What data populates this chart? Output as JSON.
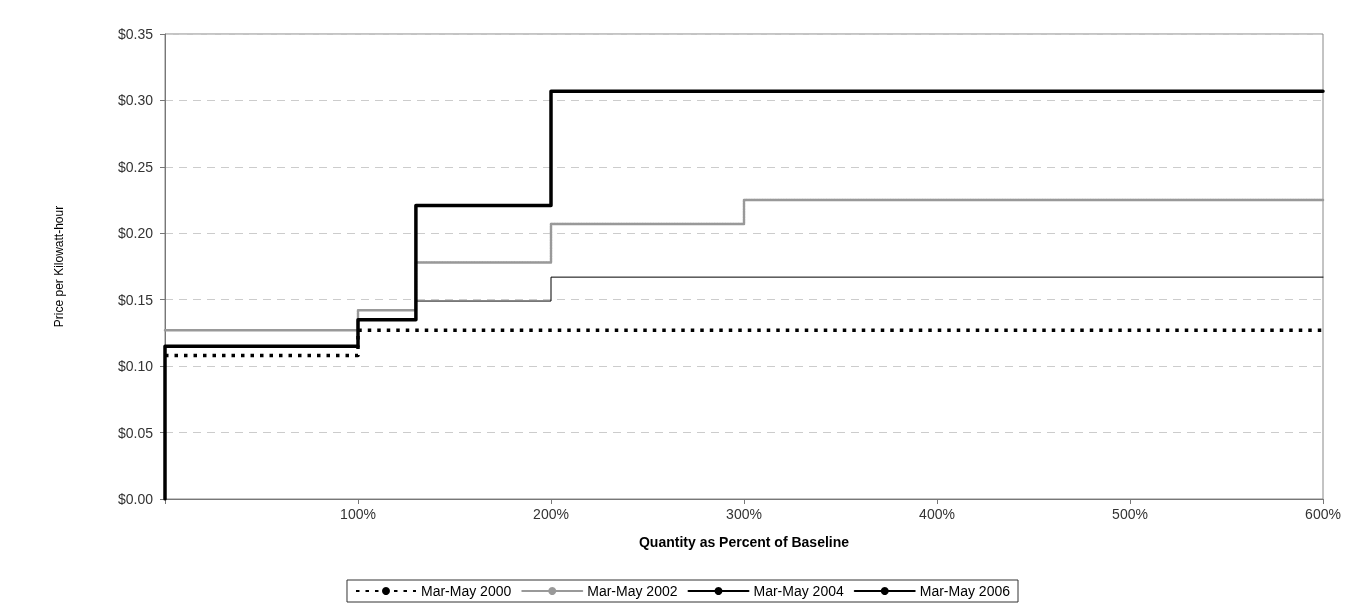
{
  "chart_data": {
    "type": "step",
    "xlabel": "Quantity as Percent of Baseline",
    "ylabel": "Price per Kilowatt-hour",
    "xlim": [
      0,
      600
    ],
    "xticks": [
      {
        "value": 0,
        "label": null
      },
      {
        "value": 100,
        "label": "100%"
      },
      {
        "value": 200,
        "label": "200%"
      },
      {
        "value": 300,
        "label": "300%"
      },
      {
        "value": 400,
        "label": "400%"
      },
      {
        "value": 500,
        "label": "500%"
      },
      {
        "value": 600,
        "label": "600%"
      }
    ],
    "ylim": [
      0,
      0.35
    ],
    "yticks": [
      {
        "value": 0,
        "label": "$0.00"
      },
      {
        "value": 0.05,
        "label": "$0.05"
      },
      {
        "value": 0.1,
        "label": "$0.10"
      },
      {
        "value": 0.15,
        "label": "$0.15"
      },
      {
        "value": 0.2,
        "label": "$0.20"
      },
      {
        "value": 0.25,
        "label": "$0.25"
      },
      {
        "value": 0.3,
        "label": "$0.30"
      },
      {
        "value": 0.35,
        "label": "$0.35"
      }
    ],
    "grid": "y",
    "legend": "bottom",
    "marker": "none",
    "series": [
      {
        "name": "Mar-May 2000",
        "color": "#000000",
        "line_style": "dashed",
        "x": [
          0,
          100,
          600
        ],
        "values": [
          0.108,
          0.127,
          0.127
        ]
      },
      {
        "name": "Mar-May 2002",
        "color": "#999999",
        "line_style": "dotted",
        "x": [
          0,
          100,
          130,
          200,
          300,
          600
        ],
        "values": [
          0.127,
          0.142,
          0.178,
          0.207,
          0.225,
          0.225
        ]
      },
      {
        "name": "Mar-May 2004",
        "color": "#000000",
        "line_style": "solid",
        "x": [
          0,
          100,
          130,
          200,
          600
        ],
        "values": [
          0.115,
          0.135,
          0.149,
          0.167,
          0.167
        ]
      },
      {
        "name": "Mar-May 2006",
        "color": "#000000",
        "line_style": "solid",
        "x": [
          0,
          0,
          100,
          130,
          200,
          600
        ],
        "values": [
          0,
          0.115,
          0.135,
          0.221,
          0.307,
          0.307
        ]
      }
    ]
  }
}
